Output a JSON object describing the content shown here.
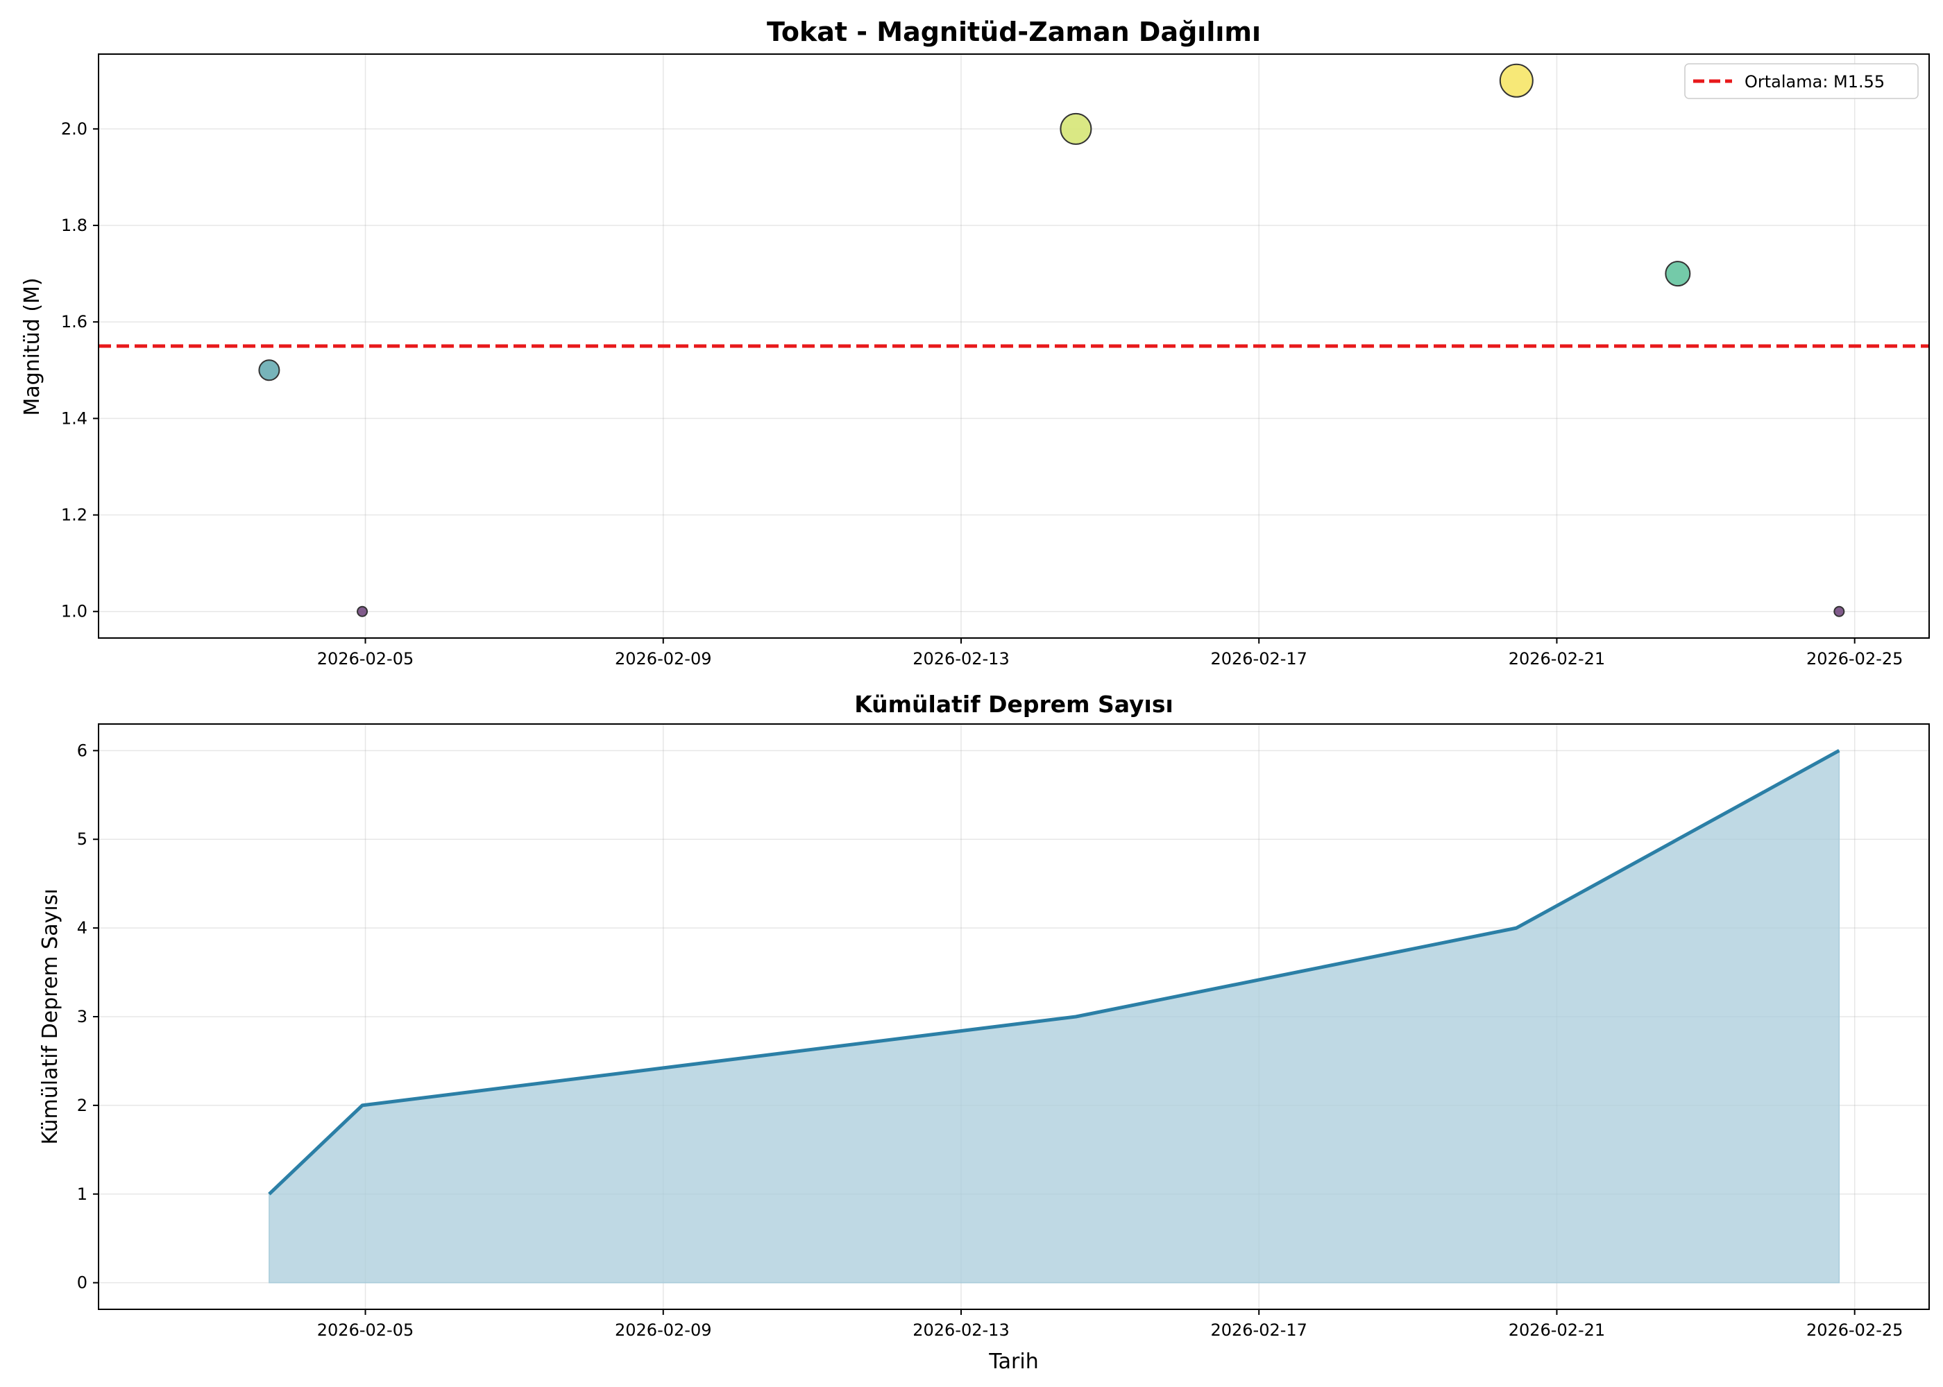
{
  "chart_data": [
    {
      "type": "scatter",
      "title": "Tokat - Magnitüd-Zaman Dağılımı",
      "xlabel": "",
      "ylabel": "Magnitüd (M)",
      "xlim": [
        "2026-02-01T10:00",
        "2026-02-26T00:00"
      ],
      "ylim": [
        0.945,
        2.155
      ],
      "x_ticks": [
        "2026-02-05",
        "2026-02-09",
        "2026-02-13",
        "2026-02-17",
        "2026-02-21",
        "2026-02-25"
      ],
      "y_ticks": [
        "1.0",
        "1.2",
        "1.4",
        "1.6",
        "1.8",
        "2.0"
      ],
      "grid": true,
      "legend_position": "upper right",
      "points": [
        {
          "x": "2026-02-03T17:00",
          "y": 1.5,
          "color": "#5fa7ae"
        },
        {
          "x": "2026-02-04T23:00",
          "y": 1.0,
          "color": "#6b3f78"
        },
        {
          "x": "2026-02-14T13:00",
          "y": 2.0,
          "color": "#d4e46e"
        },
        {
          "x": "2026-02-20T11:00",
          "y": 2.1,
          "color": "#f6e45f"
        },
        {
          "x": "2026-02-22T15:00",
          "y": 1.7,
          "color": "#5cc19a"
        },
        {
          "x": "2026-02-24T19:00",
          "y": 1.0,
          "color": "#6b3f78"
        }
      ],
      "mean_line": {
        "y": 1.55,
        "label": "Ortalama: M1.55",
        "color": "#e8191b"
      }
    },
    {
      "type": "area",
      "title": "Kümülatif Deprem Sayısı",
      "xlabel": "Tarih",
      "ylabel": "Kümülatif Deprem Sayısı",
      "xlim": [
        "2026-02-01T10:00",
        "2026-02-26T00:00"
      ],
      "ylim": [
        -0.3,
        6.3
      ],
      "x_ticks": [
        "2026-02-05",
        "2026-02-09",
        "2026-02-13",
        "2026-02-17",
        "2026-02-21",
        "2026-02-25"
      ],
      "y_ticks": [
        "0",
        "1",
        "2",
        "3",
        "4",
        "5",
        "6"
      ],
      "grid": true,
      "line_color": "#2b7fa6",
      "fill_color": "#a9ccdb",
      "points": [
        {
          "x": "2026-02-03T17:00",
          "y": 1
        },
        {
          "x": "2026-02-04T23:00",
          "y": 2
        },
        {
          "x": "2026-02-14T13:00",
          "y": 3
        },
        {
          "x": "2026-02-20T11:00",
          "y": 4
        },
        {
          "x": "2026-02-22T15:00",
          "y": 5
        },
        {
          "x": "2026-02-24T19:00",
          "y": 6
        }
      ]
    }
  ]
}
